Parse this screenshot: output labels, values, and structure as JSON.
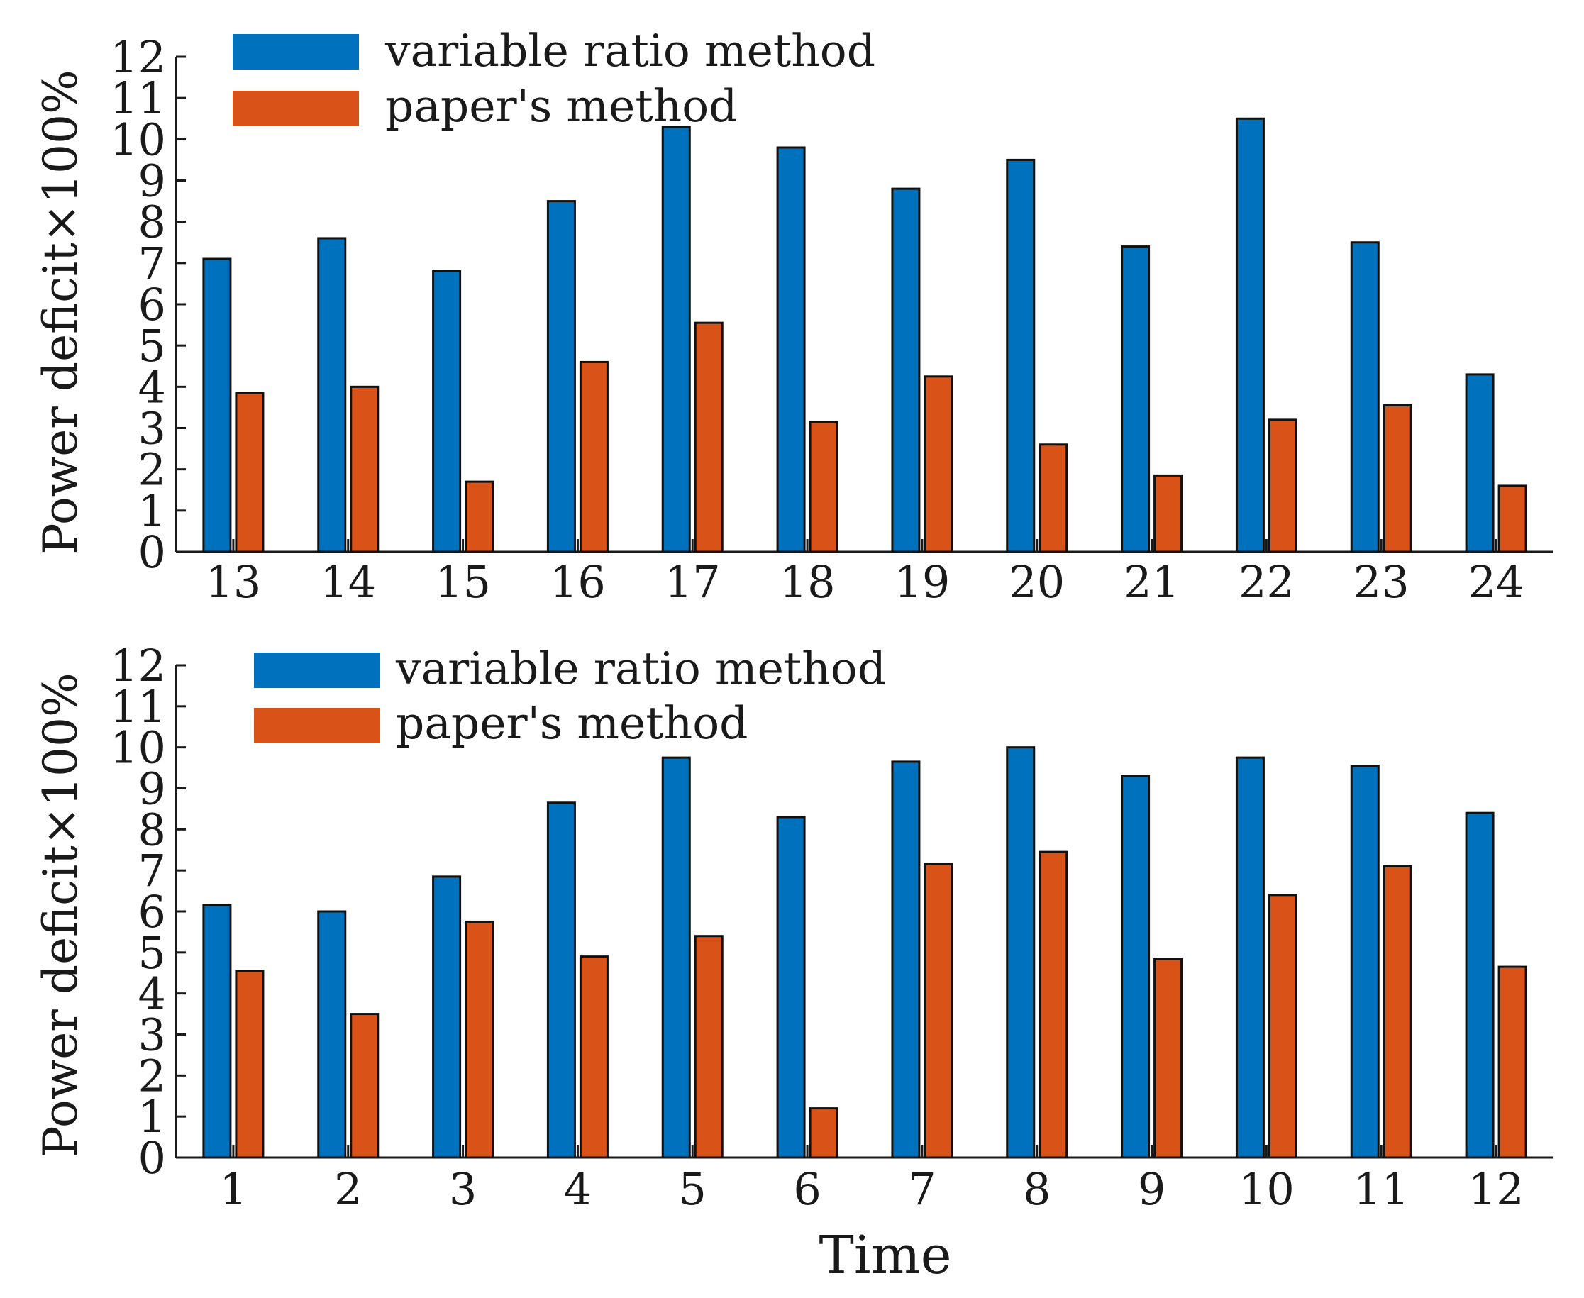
{
  "chart_data": [
    {
      "type": "bar",
      "categories": [
        "13",
        "14",
        "15",
        "16",
        "17",
        "18",
        "19",
        "20",
        "21",
        "22",
        "23",
        "24"
      ],
      "series": [
        {
          "name": "variable ratio method",
          "color": "#0072BD",
          "values": [
            7.1,
            7.6,
            6.8,
            8.5,
            10.3,
            9.8,
            8.8,
            9.5,
            7.4,
            10.5,
            7.5,
            4.3
          ]
        },
        {
          "name": "paper's method",
          "color": "#D95319",
          "values": [
            3.85,
            4.0,
            1.7,
            4.6,
            5.55,
            3.15,
            4.25,
            2.6,
            1.85,
            3.2,
            3.55,
            1.6
          ]
        }
      ],
      "ylabel": "Power deficit×100%",
      "xlabel": "",
      "ylim": [
        0,
        12
      ],
      "yticks": [
        "0",
        "1",
        "2",
        "3",
        "4",
        "5",
        "6",
        "7",
        "8",
        "9",
        "10",
        "11",
        "12"
      ],
      "legend": "top-left",
      "grid": false
    },
    {
      "type": "bar",
      "categories": [
        "1",
        "2",
        "3",
        "4",
        "5",
        "6",
        "7",
        "8",
        "9",
        "10",
        "11",
        "12"
      ],
      "series": [
        {
          "name": "variable ratio method",
          "color": "#0072BD",
          "values": [
            6.15,
            6.0,
            6.85,
            8.65,
            9.75,
            8.3,
            9.65,
            10.0,
            9.3,
            9.75,
            9.55,
            8.4
          ]
        },
        {
          "name": "paper's method",
          "color": "#D95319",
          "values": [
            4.55,
            3.5,
            5.75,
            4.9,
            5.4,
            1.2,
            7.15,
            7.45,
            4.85,
            6.4,
            7.1,
            4.65
          ]
        }
      ],
      "ylabel": "Power deficit×100%",
      "xlabel": "Time",
      "ylim": [
        0,
        12
      ],
      "yticks": [
        "0",
        "1",
        "2",
        "3",
        "4",
        "5",
        "6",
        "7",
        "8",
        "9",
        "10",
        "11",
        "12"
      ],
      "legend": "top-left",
      "grid": false
    }
  ]
}
